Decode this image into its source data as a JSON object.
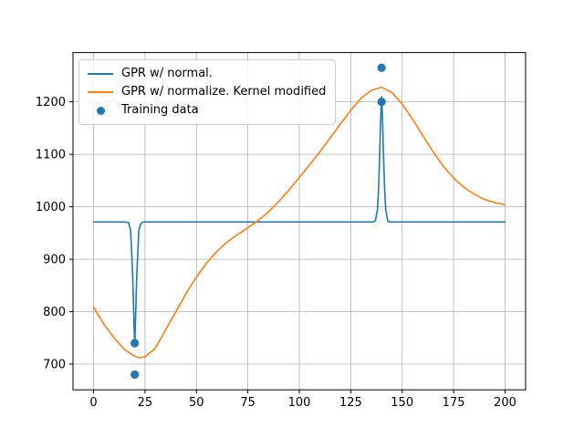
{
  "figure": {
    "background": "#ffffff"
  },
  "chart_data": {
    "type": "line",
    "title": "",
    "xlabel": "",
    "ylabel": "",
    "xlim": [
      -10,
      210
    ],
    "ylim": [
      651,
      1294
    ],
    "xticks": [
      0,
      25,
      50,
      75,
      100,
      125,
      150,
      175,
      200
    ],
    "yticks": [
      700,
      800,
      900,
      1000,
      1100,
      1200
    ],
    "grid": true,
    "grid_color": "#b0b0b0",
    "spine_color": "#000000",
    "tick_label_color": "#000000",
    "legend_position": "upper-left",
    "series": [
      {
        "name": "GPR w/ normal.",
        "type": "line",
        "color": "#1f77b4",
        "points": [
          [
            0,
            971
          ],
          [
            10,
            971
          ],
          [
            15,
            971
          ],
          [
            17,
            970
          ],
          [
            18,
            955
          ],
          [
            19,
            870
          ],
          [
            19.5,
            800
          ],
          [
            20,
            733
          ],
          [
            20.5,
            800
          ],
          [
            21,
            870
          ],
          [
            22,
            955
          ],
          [
            23,
            968
          ],
          [
            24,
            971
          ],
          [
            30,
            971
          ],
          [
            50,
            971
          ],
          [
            70,
            971
          ],
          [
            90,
            971
          ],
          [
            110,
            971
          ],
          [
            130,
            971
          ],
          [
            136,
            971
          ],
          [
            137,
            973
          ],
          [
            138,
            995
          ],
          [
            138.5,
            1030
          ],
          [
            139,
            1090
          ],
          [
            139.5,
            1160
          ],
          [
            140,
            1210
          ],
          [
            140.5,
            1160
          ],
          [
            141,
            1090
          ],
          [
            141.5,
            1030
          ],
          [
            142,
            995
          ],
          [
            143,
            973
          ],
          [
            144,
            971
          ],
          [
            150,
            971
          ],
          [
            170,
            971
          ],
          [
            200,
            971
          ]
        ]
      },
      {
        "name": "GPR w/ normalize. Kernel modified",
        "type": "line",
        "color": "#ff7f0e",
        "points": [
          [
            0,
            808
          ],
          [
            5,
            776
          ],
          [
            10,
            750
          ],
          [
            15,
            728
          ],
          [
            20,
            715
          ],
          [
            22,
            712
          ],
          [
            25,
            714
          ],
          [
            30,
            730
          ],
          [
            35,
            765
          ],
          [
            40,
            800
          ],
          [
            45,
            835
          ],
          [
            50,
            866
          ],
          [
            55,
            893
          ],
          [
            60,
            915
          ],
          [
            65,
            933
          ],
          [
            70,
            947
          ],
          [
            75,
            960
          ],
          [
            80,
            974
          ],
          [
            85,
            990
          ],
          [
            90,
            1010
          ],
          [
            95,
            1032
          ],
          [
            100,
            1056
          ],
          [
            105,
            1080
          ],
          [
            110,
            1105
          ],
          [
            115,
            1131
          ],
          [
            120,
            1158
          ],
          [
            125,
            1184
          ],
          [
            130,
            1207
          ],
          [
            135,
            1222
          ],
          [
            140,
            1228
          ],
          [
            145,
            1218
          ],
          [
            150,
            1196
          ],
          [
            155,
            1167
          ],
          [
            160,
            1136
          ],
          [
            165,
            1105
          ],
          [
            170,
            1077
          ],
          [
            175,
            1055
          ],
          [
            180,
            1037
          ],
          [
            185,
            1024
          ],
          [
            190,
            1014
          ],
          [
            195,
            1008
          ],
          [
            200,
            1004
          ]
        ]
      },
      {
        "name": "Training data",
        "type": "scatter",
        "color": "#1f77b4",
        "points": [
          [
            20,
            680
          ],
          [
            20,
            740
          ],
          [
            140,
            1200
          ],
          [
            140,
            1265
          ]
        ]
      }
    ]
  }
}
